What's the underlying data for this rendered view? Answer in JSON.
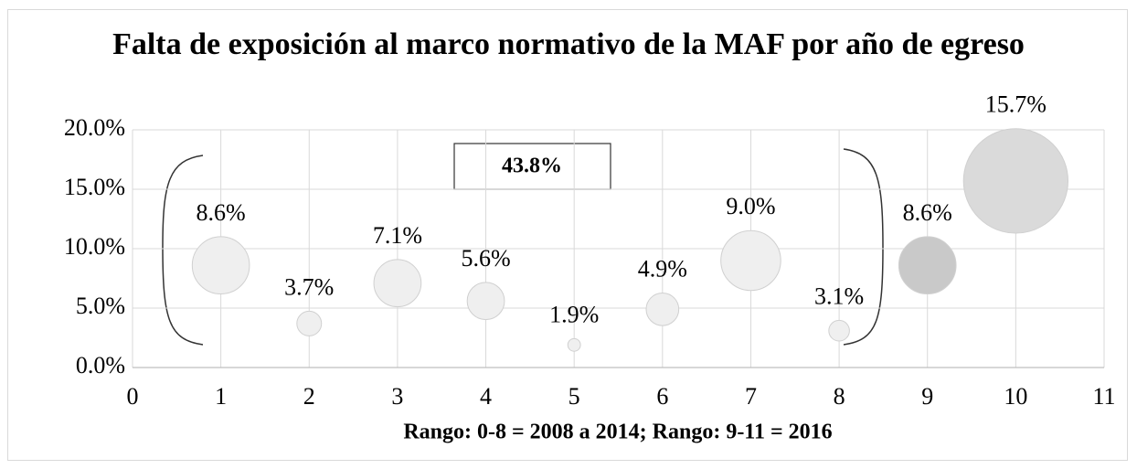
{
  "chart_data": {
    "type": "bubble",
    "title": "Falta de exposición al marco normativo de la MAF por año de egreso",
    "x_label": "Rango: 0-8 = 2008 a 2014; Rango: 9-11 = 2016",
    "x": [
      1,
      2,
      3,
      4,
      5,
      6,
      7,
      8,
      9,
      10
    ],
    "values": [
      8.6,
      3.7,
      7.1,
      5.6,
      1.9,
      4.9,
      9.0,
      3.1,
      8.6,
      15.7
    ],
    "value_labels": [
      "8.6%",
      "3.7%",
      "7.1%",
      "5.6%",
      "1.9%",
      "4.9%",
      "9.0%",
      "3.1%",
      "8.6%",
      "15.7%"
    ],
    "colors": [
      "#efefef",
      "#efefef",
      "#efefef",
      "#efefef",
      "#efefef",
      "#efefef",
      "#efefef",
      "#efefef",
      "#c9c9c9",
      "#dadada"
    ],
    "annotation": "43.8%",
    "xlim": [
      0,
      11
    ],
    "xticks": [
      0,
      1,
      2,
      3,
      4,
      5,
      6,
      7,
      8,
      9,
      10,
      11
    ],
    "ylim": [
      0,
      20
    ],
    "yticks": [
      {
        "value": 0,
        "label": "0.0%"
      },
      {
        "value": 5,
        "label": "5.0%"
      },
      {
        "value": 10,
        "label": "10.0%"
      },
      {
        "value": 15,
        "label": "15.0%"
      },
      {
        "value": 20,
        "label": "20.0%"
      }
    ],
    "grid": true
  }
}
